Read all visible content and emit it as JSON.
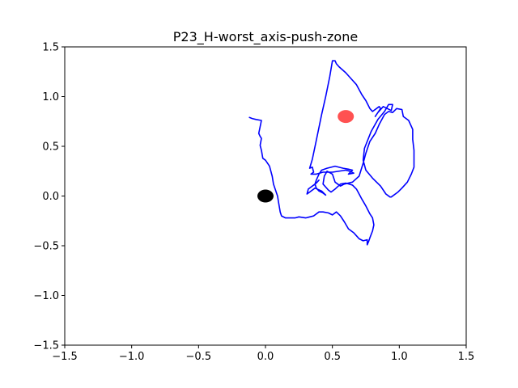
{
  "chart_data": {
    "type": "line",
    "title": "P23_H-worst_axis-push-zone",
    "xlabel": "",
    "ylabel": "",
    "xlim": [
      -1.5,
      1.5
    ],
    "ylim": [
      -1.5,
      1.5
    ],
    "xticks": [
      -1.5,
      -1.0,
      -0.5,
      0.0,
      0.5,
      1.0,
      1.5
    ],
    "yticks": [
      -1.5,
      -1.0,
      -0.5,
      0.0,
      0.5,
      1.0,
      1.5
    ],
    "xtick_labels": [
      "−1.5",
      "−1.0",
      "−0.5",
      "0.0",
      "0.5",
      "1.0",
      "1.5"
    ],
    "ytick_labels": [
      "−1.5",
      "−1.0",
      "−0.5",
      "0.0",
      "0.5",
      "1.0",
      "1.5"
    ],
    "grid": false,
    "colors": {
      "trajectory": "#0000ff",
      "start_marker": "#000000",
      "goal_marker": "#ff3333",
      "axes": "#000000"
    },
    "markers": [
      {
        "x": 0.0,
        "y": 0.0,
        "color": "#000000",
        "opacity": 1.0
      },
      {
        "x": 0.6,
        "y": 0.8,
        "color": "#ff3333",
        "opacity": 0.85
      }
    ],
    "series": [
      {
        "color": "#0000ff",
        "points": [
          [
            -0.12,
            0.79
          ],
          [
            -0.1,
            0.78
          ],
          [
            -0.07,
            0.77
          ],
          [
            -0.03,
            0.76
          ],
          [
            -0.05,
            0.63
          ],
          [
            -0.04,
            0.6
          ],
          [
            -0.03,
            0.58
          ],
          [
            -0.04,
            0.51
          ],
          [
            -0.03,
            0.46
          ],
          [
            -0.02,
            0.38
          ],
          [
            0.0,
            0.36
          ],
          [
            0.03,
            0.3
          ],
          [
            0.05,
            0.2
          ],
          [
            0.06,
            0.12
          ],
          [
            0.09,
            0.0
          ],
          [
            0.1,
            -0.08
          ],
          [
            0.11,
            -0.16
          ],
          [
            0.12,
            -0.2
          ],
          [
            0.15,
            -0.22
          ],
          [
            0.22,
            -0.22
          ],
          [
            0.25,
            -0.21
          ],
          [
            0.3,
            -0.22
          ],
          [
            0.36,
            -0.2
          ],
          [
            0.4,
            -0.16
          ],
          [
            0.43,
            -0.16
          ],
          [
            0.47,
            -0.17
          ],
          [
            0.5,
            -0.19
          ],
          [
            0.53,
            -0.16
          ],
          [
            0.56,
            -0.2
          ],
          [
            0.59,
            -0.26
          ],
          [
            0.62,
            -0.33
          ],
          [
            0.66,
            -0.37
          ],
          [
            0.68,
            -0.4
          ],
          [
            0.7,
            -0.43
          ],
          [
            0.73,
            -0.45
          ],
          [
            0.76,
            -0.44
          ],
          [
            0.76,
            -0.49
          ],
          [
            0.77,
            -0.46
          ],
          [
            0.78,
            -0.42
          ],
          [
            0.8,
            -0.35
          ],
          [
            0.81,
            -0.29
          ],
          [
            0.8,
            -0.22
          ],
          [
            0.78,
            -0.18
          ],
          [
            0.75,
            -0.1
          ],
          [
            0.72,
            -0.03
          ],
          [
            0.7,
            0.02
          ],
          [
            0.68,
            0.07
          ],
          [
            0.65,
            0.11
          ],
          [
            0.6,
            0.13
          ],
          [
            0.56,
            0.12
          ],
          [
            0.52,
            0.07
          ],
          [
            0.49,
            0.04
          ],
          [
            0.47,
            0.06
          ],
          [
            0.43,
            0.12
          ],
          [
            0.44,
            0.2
          ],
          [
            0.46,
            0.25
          ],
          [
            0.5,
            0.22
          ],
          [
            0.52,
            0.14
          ],
          [
            0.56,
            0.1
          ],
          [
            0.59,
            0.12
          ],
          [
            0.65,
            0.14
          ],
          [
            0.7,
            0.2
          ],
          [
            0.73,
            0.33
          ],
          [
            0.75,
            0.43
          ],
          [
            0.78,
            0.55
          ],
          [
            0.82,
            0.63
          ],
          [
            0.85,
            0.72
          ],
          [
            0.89,
            0.82
          ],
          [
            0.92,
            0.85
          ],
          [
            0.95,
            0.84
          ],
          [
            0.98,
            0.88
          ],
          [
            1.02,
            0.87
          ],
          [
            1.03,
            0.8
          ],
          [
            1.07,
            0.76
          ],
          [
            1.1,
            0.67
          ],
          [
            1.1,
            0.57
          ],
          [
            1.11,
            0.46
          ],
          [
            1.11,
            0.29
          ],
          [
            1.09,
            0.22
          ],
          [
            1.06,
            0.14
          ],
          [
            1.02,
            0.08
          ],
          [
            0.99,
            0.04
          ],
          [
            0.94,
            -0.01
          ],
          [
            0.93,
            -0.01
          ],
          [
            0.9,
            0.02
          ],
          [
            0.86,
            0.1
          ],
          [
            0.8,
            0.18
          ],
          [
            0.75,
            0.26
          ],
          [
            0.73,
            0.36
          ],
          [
            0.74,
            0.48
          ],
          [
            0.79,
            0.65
          ],
          [
            0.84,
            0.77
          ],
          [
            0.89,
            0.85
          ],
          [
            0.92,
            0.92
          ],
          [
            0.95,
            0.92
          ],
          [
            0.94,
            0.86
          ],
          [
            0.88,
            0.9
          ],
          [
            0.84,
            0.84
          ],
          [
            0.82,
            0.8
          ],
          [
            0.86,
            0.88
          ],
          [
            0.85,
            0.9
          ],
          [
            0.8,
            0.85
          ],
          [
            0.78,
            0.88
          ],
          [
            0.75,
            0.96
          ],
          [
            0.72,
            1.02
          ],
          [
            0.7,
            1.07
          ],
          [
            0.68,
            1.12
          ],
          [
            0.64,
            1.18
          ],
          [
            0.6,
            1.24
          ],
          [
            0.55,
            1.3
          ],
          [
            0.53,
            1.33
          ],
          [
            0.52,
            1.36
          ],
          [
            0.5,
            1.36
          ],
          [
            0.48,
            1.2
          ],
          [
            0.45,
            1.0
          ],
          [
            0.42,
            0.82
          ],
          [
            0.38,
            0.56
          ],
          [
            0.35,
            0.37
          ],
          [
            0.33,
            0.28
          ],
          [
            0.35,
            0.29
          ],
          [
            0.36,
            0.24
          ],
          [
            0.34,
            0.22
          ],
          [
            0.38,
            0.22
          ],
          [
            0.43,
            0.24
          ],
          [
            0.5,
            0.24
          ],
          [
            0.6,
            0.26
          ],
          [
            0.63,
            0.25
          ],
          [
            0.66,
            0.23
          ],
          [
            0.62,
            0.22
          ],
          [
            0.65,
            0.26
          ],
          [
            0.62,
            0.27
          ],
          [
            0.58,
            0.28
          ],
          [
            0.52,
            0.3
          ],
          [
            0.46,
            0.28
          ],
          [
            0.42,
            0.26
          ],
          [
            0.4,
            0.22
          ],
          [
            0.38,
            0.16
          ],
          [
            0.37,
            0.12
          ],
          [
            0.38,
            0.08
          ],
          [
            0.4,
            0.05
          ],
          [
            0.43,
            0.03
          ],
          [
            0.45,
            0.01
          ],
          [
            0.42,
            0.05
          ],
          [
            0.37,
            0.08
          ],
          [
            0.33,
            0.04
          ],
          [
            0.31,
            0.02
          ],
          [
            0.32,
            0.07
          ],
          [
            0.35,
            0.1
          ],
          [
            0.38,
            0.13
          ],
          [
            0.4,
            0.16
          ]
        ]
      }
    ]
  }
}
